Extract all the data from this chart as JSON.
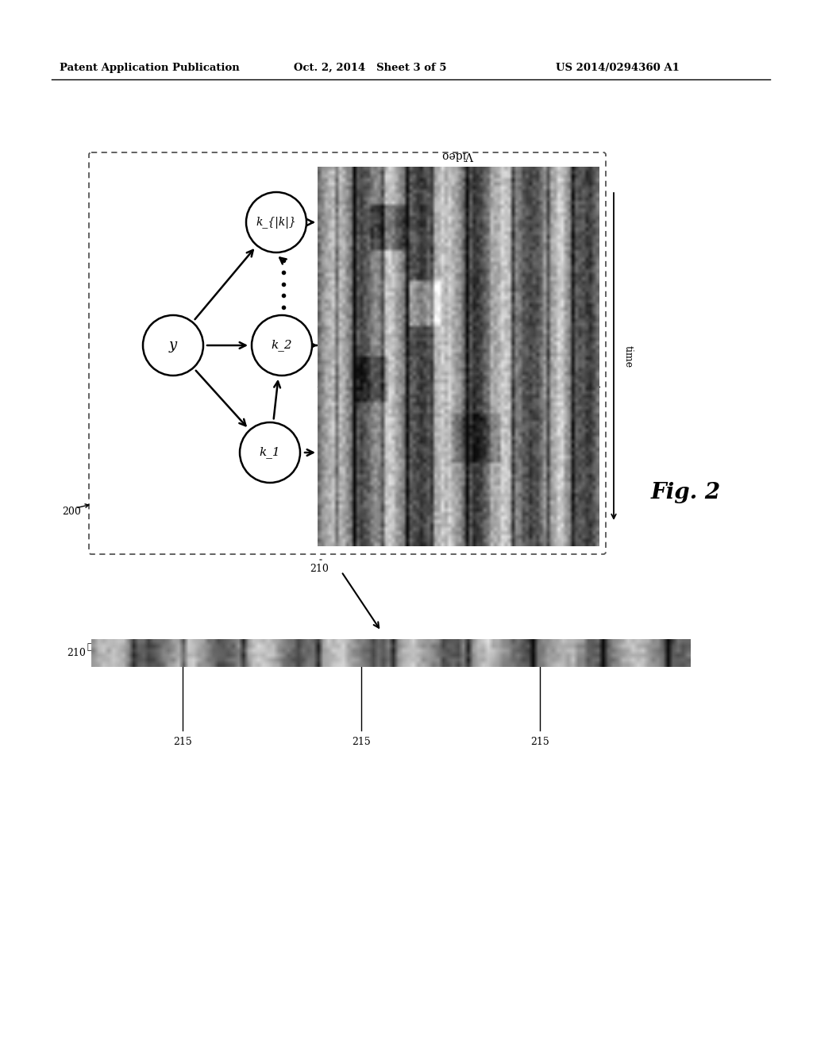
{
  "bg_color": "#ffffff",
  "header_left": "Patent Application Publication",
  "header_mid": "Oct. 2, 2014   Sheet 3 of 5",
  "header_right": "US 2014/0294360 A1",
  "fig_label": "Fig. 2",
  "label_200": "200",
  "label_210_upper": "210",
  "label_210_lower": "210",
  "label_215": "215",
  "video_label": "Video",
  "time_label": "time",
  "node_y_label": "y",
  "node_k1_label": "k_1",
  "node_k2_label": "k_2",
  "node_kk_label": "k_{|k|}",
  "dashed_box_color": "#666666",
  "text_color": "#111111"
}
